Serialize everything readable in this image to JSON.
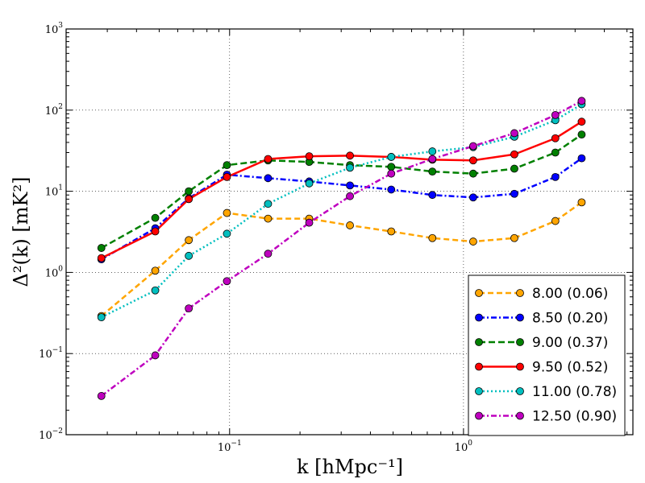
{
  "chart_data": {
    "type": "line",
    "xscale": "log",
    "yscale": "log",
    "xlim": [
      0.02,
      5.3
    ],
    "ylim": [
      0.01,
      1000
    ],
    "xlabel": "k [hMpc⁻¹]",
    "ylabel": "Δ²(k) [mK²]",
    "grid": true,
    "legend_location": "lower-right",
    "x_ticks": [
      {
        "value": 0.1,
        "base": "10",
        "exp": "−1"
      },
      {
        "value": 1,
        "base": "10",
        "exp": "0"
      }
    ],
    "y_ticks": [
      {
        "value": 0.01,
        "base": "10",
        "exp": "−2"
      },
      {
        "value": 0.1,
        "base": "10",
        "exp": "−1"
      },
      {
        "value": 1,
        "base": "10",
        "exp": "0"
      },
      {
        "value": 10,
        "base": "10",
        "exp": "1"
      },
      {
        "value": 100,
        "base": "10",
        "exp": "2"
      },
      {
        "value": 1000,
        "base": "10",
        "exp": "3"
      }
    ],
    "x": [
      0.0283,
      0.0481,
      0.0669,
      0.0974,
      0.146,
      0.219,
      0.327,
      0.491,
      0.736,
      1.1,
      1.65,
      2.47,
      3.2
    ],
    "series": [
      {
        "name": "8.00 (0.06)",
        "color": "#ffa500",
        "dash": "7,4",
        "marker": "#ffa500",
        "values": [
          0.29,
          1.05,
          2.5,
          5.4,
          4.6,
          4.6,
          3.8,
          3.2,
          2.65,
          2.4,
          2.65,
          4.3,
          7.3
        ]
      },
      {
        "name": "8.50 (0.20)",
        "color": "#0000ff",
        "dash": "7,3,2,3",
        "marker": "#0000ff",
        "values": [
          1.45,
          3.5,
          8.2,
          16.0,
          14.5,
          13.2,
          11.8,
          10.5,
          9.0,
          8.4,
          9.3,
          15.0,
          25.5
        ]
      },
      {
        "name": "9.00 (0.37)",
        "color": "#008000",
        "dash": "8,4",
        "marker": "#008000",
        "values": [
          2.0,
          4.7,
          10.0,
          21.0,
          24.0,
          23.0,
          21.0,
          20.0,
          17.5,
          16.5,
          19.0,
          30.0,
          50.0
        ]
      },
      {
        "name": "9.50 (0.52)",
        "color": "#ff0000",
        "dash": "",
        "marker": "#ff0000",
        "values": [
          1.5,
          3.2,
          8.0,
          15.0,
          25.0,
          27.0,
          27.5,
          26.5,
          24.5,
          24.0,
          28.5,
          45.0,
          72.0
        ]
      },
      {
        "name": "11.00 (0.78)",
        "color": "#00bfbf",
        "dash": "2,3",
        "marker": "#00bfbf",
        "values": [
          0.28,
          0.6,
          1.6,
          3.0,
          7.0,
          12.5,
          19.5,
          26.5,
          31.0,
          35.0,
          47.0,
          75.0,
          118.0
        ]
      },
      {
        "name": "12.50 (0.90)",
        "color": "#bf00bf",
        "dash": "7,3,2,3",
        "marker": "#bf00bf",
        "values": [
          0.03,
          0.095,
          0.36,
          0.78,
          1.7,
          4.1,
          8.7,
          16.5,
          25.0,
          36.0,
          52.0,
          87.0,
          130.0
        ]
      }
    ]
  }
}
